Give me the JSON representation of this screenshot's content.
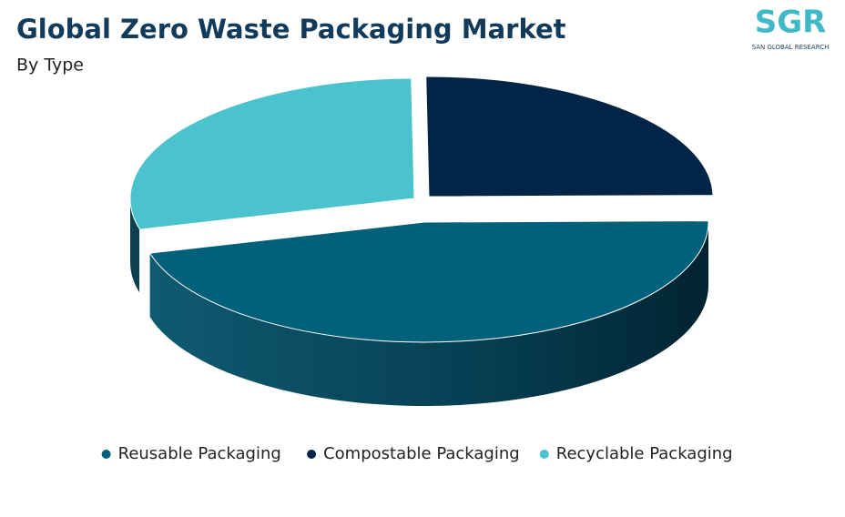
{
  "chart_data": {
    "type": "pie3d",
    "title": "Global Zero Waste Packaging Market",
    "subtitle": "By Type",
    "logo": {
      "mark": "SGR",
      "caption": "SAN GLOBAL RESEARCH"
    },
    "series": [
      {
        "name": "Reusable Packaging",
        "color": "#03607a",
        "values": [
          46
        ]
      },
      {
        "name": "Compostable Packaging",
        "color": "#022447",
        "values": [
          25
        ]
      },
      {
        "name": "Recyclable Packaging",
        "color": "#4bc3cf",
        "values": [
          29
        ]
      }
    ],
    "legend": "bottom"
  }
}
